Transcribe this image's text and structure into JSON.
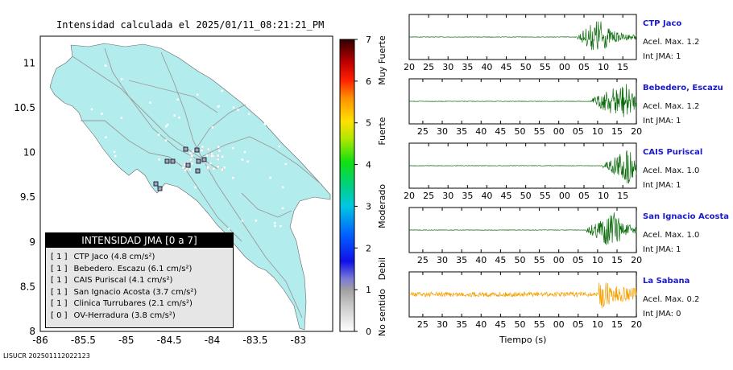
{
  "title": "Intensidad calculada el 2025/01/11_08:21:21_PM",
  "footer": "LISUCR 202501112022123",
  "map": {
    "x_ticks": [
      -86,
      -85.5,
      -85,
      -84.5,
      -84,
      -83.5,
      -83
    ],
    "x_tick_labels": [
      "-86",
      "-85.5",
      "-85",
      "-84.5",
      "-84",
      "-83.5",
      "-83"
    ],
    "y_ticks": [
      8,
      8.5,
      9,
      9.5,
      10,
      10.5,
      11
    ],
    "y_tick_labels": [
      "8",
      "8.5",
      "9",
      "9.5",
      "10",
      "10.5",
      "11"
    ],
    "land_color": "#b3ecec",
    "road_color": "#9a9a9a"
  },
  "colorbar": {
    "ticks": [
      "0",
      "1",
      "2",
      "3",
      "4",
      "5",
      "6",
      "7"
    ],
    "categories": [
      "No sentido",
      "Debil",
      "Moderado",
      "Fuerte",
      "Muy Fuerte"
    ]
  },
  "legend": {
    "title": "INTENSIDAD JMA [0 a 7]",
    "items": [
      {
        "jma": "[ 1 ]",
        "text": "CTP Jaco (4.8 cm/s²)"
      },
      {
        "jma": "[ 1 ]",
        "text": "Bebedero. Escazu (6.1 cm/s²)"
      },
      {
        "jma": "[ 1 ]",
        "text": "CAIS Puriscal (4.1 cm/s²)"
      },
      {
        "jma": "[ 1 ]",
        "text": "San Ignacio Acosta (3.7 cm/s²)"
      },
      {
        "jma": "[ 1 ]",
        "text": "Clinica Turrubares (2.1 cm/s²)"
      },
      {
        "jma": "[ 0 ]",
        "text": "OV-Herradura (3.8 cm/s²)"
      }
    ]
  },
  "waveforms": [
    {
      "name": "CTP Jaco",
      "acel": "Acel. Max. 1.2",
      "int": "Int JMA: 1",
      "color": "#0a6b0a",
      "ticks": [
        "20",
        "25",
        "30",
        "35",
        "40",
        "45",
        "50",
        "55",
        "00",
        "05",
        "10",
        "15"
      ],
      "tick_start": 0.0,
      "tick_step": 0.0855,
      "burst_start": 0.74,
      "burst_peak": 0.84
    },
    {
      "name": "Bebedero, Escazu",
      "acel": "Acel. Max. 1.2",
      "int": "Int JMA: 1",
      "color": "#0a6b0a",
      "ticks": [
        "25",
        "30",
        "35",
        "40",
        "45",
        "50",
        "55",
        "00",
        "05",
        "10",
        "15",
        "20"
      ],
      "tick_start": 0.06,
      "tick_step": 0.0855,
      "burst_start": 0.8,
      "burst_peak": 0.95
    },
    {
      "name": "CAIS Puriscal",
      "acel": "Acel. Max. 1.0",
      "int": "Int JMA: 1",
      "color": "#0a6b0a",
      "ticks": [
        "20",
        "25",
        "30",
        "35",
        "40",
        "45",
        "50",
        "55",
        "00",
        "05",
        "10",
        "15"
      ],
      "tick_start": 0.0,
      "tick_step": 0.0855,
      "burst_start": 0.85,
      "burst_peak": 0.97
    },
    {
      "name": "San Ignacio Acosta",
      "acel": "Acel. Max. 1.0",
      "int": "Int JMA: 1",
      "color": "#0a6b0a",
      "ticks": [
        "25",
        "30",
        "35",
        "40",
        "45",
        "50",
        "55",
        "00",
        "05",
        "10",
        "15",
        "20"
      ],
      "tick_start": 0.06,
      "tick_step": 0.0855,
      "burst_start": 0.78,
      "burst_peak": 0.9
    },
    {
      "name": "La Sabana",
      "acel": "Acel. Max. 0.2",
      "int": "Int JMA: 0",
      "color": "#f5a000",
      "ticks": [
        "25",
        "30",
        "35",
        "40",
        "45",
        "50",
        "55",
        "00",
        "05",
        "10",
        "15",
        "20"
      ],
      "tick_start": 0.06,
      "tick_step": 0.0855,
      "burst_start": 0.83,
      "burst_peak": 0.84,
      "noisy": true
    }
  ],
  "time_label": "Tiempo (s)"
}
